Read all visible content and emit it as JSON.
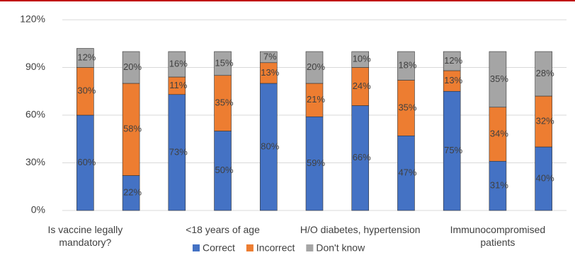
{
  "chart_data": {
    "type": "stacked_bar",
    "categories": [
      "Is vaccine legally mandatory?",
      null,
      null,
      "<18 years of age",
      null,
      null,
      "H/O diabetes, hypertension",
      null,
      null,
      "Immunocompromised patients",
      null
    ],
    "series": [
      {
        "name": "Correct",
        "color": "#4472c4",
        "values": [
          60,
          22,
          73,
          50,
          80,
          59,
          66,
          47,
          75,
          31,
          40
        ],
        "value_labels": [
          "60%",
          "22%",
          "73%",
          "50%",
          "80%",
          "59%",
          "66%",
          "47%",
          "75%",
          "31%",
          "40%"
        ]
      },
      {
        "name": "Incorrect",
        "color": "#ed7d31",
        "values": [
          30,
          58,
          11,
          35,
          13,
          21,
          24,
          35,
          13,
          34,
          32
        ],
        "value_labels": [
          "30%",
          "58%",
          "11%",
          "35%",
          "13%",
          "21%",
          "24%",
          "35%",
          "13%",
          "34%",
          "32%"
        ]
      },
      {
        "name": "Don't know",
        "color": "#a5a5a5",
        "values": [
          12,
          20,
          16,
          15,
          7,
          20,
          10,
          18,
          12,
          35,
          28
        ],
        "value_labels": [
          "12%",
          "20%",
          "16%",
          "15%",
          "7%",
          "20%",
          "10%",
          "18%",
          "12%",
          "35%",
          "28%"
        ]
      }
    ],
    "ylim": [
      0,
      120
    ],
    "yticks": [
      {
        "value": 0,
        "label": "0%"
      },
      {
        "value": 30,
        "label": "30%"
      },
      {
        "value": 60,
        "label": "60%"
      },
      {
        "value": 90,
        "label": "90%"
      },
      {
        "value": 120,
        "label": "120%"
      }
    ],
    "grid": true,
    "legend": "bottom"
  }
}
